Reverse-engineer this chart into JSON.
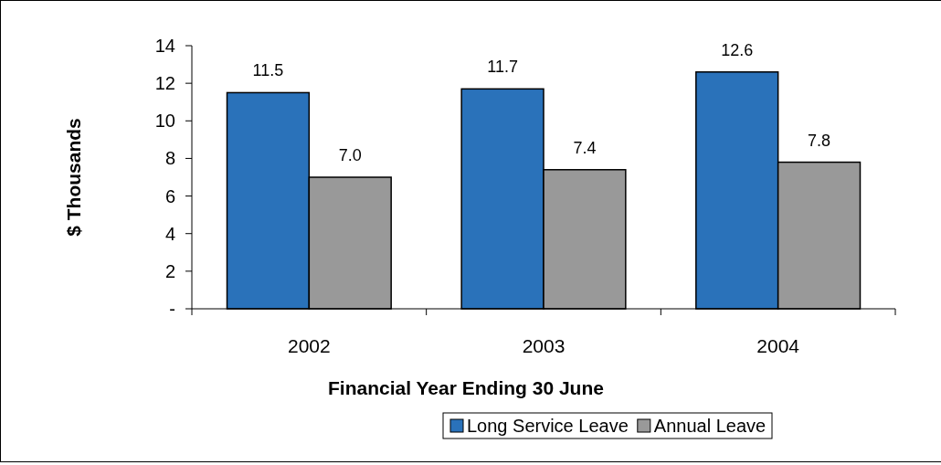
{
  "chart_data": {
    "type": "bar",
    "xlabel": "Financial Year Ending 30 June",
    "ylabel": "$ Thousands",
    "categories": [
      "2002",
      "2003",
      "2004"
    ],
    "series": [
      {
        "name": "Long Service Leave",
        "color": "#2a72ba",
        "values": [
          11.5,
          11.7,
          12.6
        ],
        "value_labels": [
          "11.5",
          "11.7",
          "12.6"
        ]
      },
      {
        "name": "Annual Leave",
        "color": "#999999",
        "values": [
          7.0,
          7.4,
          7.8
        ],
        "value_labels": [
          "7.0",
          "7.4",
          "7.8"
        ]
      }
    ],
    "ylim": [
      0,
      14
    ],
    "yticks": [
      {
        "value": 0,
        "label": "-"
      },
      2,
      4,
      6,
      8,
      10,
      12,
      14
    ],
    "grid": false,
    "legend": "bottom"
  }
}
